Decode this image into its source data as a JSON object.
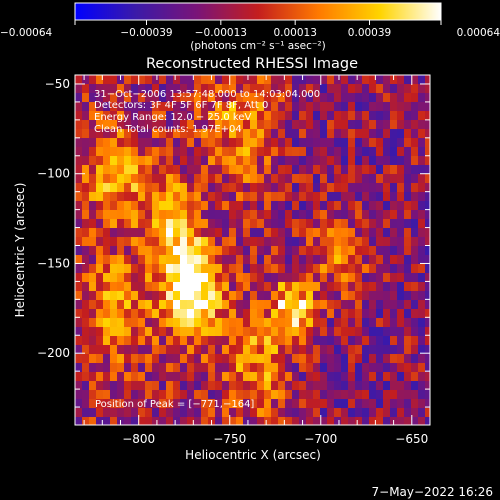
{
  "chart_data": {
    "type": "heatmap",
    "title": "Reconstructed RHESSI Image",
    "xlabel": "Heliocentric X (arcsec)",
    "ylabel": "Heliocentric Y (arcsec)",
    "xlim": [
      -835,
      -640
    ],
    "ylim": [
      -240,
      -45
    ],
    "x_ticks": [
      -800,
      -750,
      -700,
      -650
    ],
    "x_tick_labels": [
      "−800",
      "−750",
      "−700",
      "−650"
    ],
    "y_ticks": [
      -50,
      -100,
      -150,
      -200
    ],
    "y_tick_labels": [
      "−50",
      "−100",
      "−150",
      "−200"
    ],
    "colorbar": {
      "range": [
        -0.00064,
        0.00064
      ],
      "ticks": [
        -0.00064,
        -0.00039,
        -0.00013,
        0.00013,
        0.00039,
        0.00064
      ],
      "tick_labels": [
        "−0.00064",
        "−0.00039",
        "−0.00013",
        "0.00013",
        "0.00039",
        "0.00064"
      ],
      "unit_label": "(photons cm⁻² s⁻¹ asec⁻²)",
      "colors": [
        "#0000ff",
        "#3b1aa8",
        "#7a1478",
        "#c41e1e",
        "#ff7a00",
        "#ffd400",
        "#ffffff"
      ]
    },
    "annotations": [
      "31−Oct−2006 13:57:48.000 to 14:03:04.000",
      "Detectors: 3F 4F 5F 6F 7F 8F, Att 0",
      "Energy Range: 12.0 − 25.0 keV",
      "Clean     Total counts: 1.97E+04"
    ],
    "peak_label": "Position of Peak = [−771,−164]",
    "peak": [
      -771,
      -164
    ],
    "grid": false
  },
  "footer": {
    "date": "7−May−2022 16:26"
  }
}
